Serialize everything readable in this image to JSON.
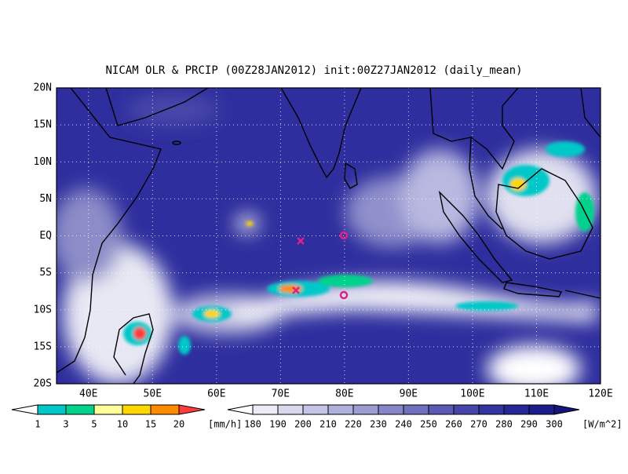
{
  "title": "NICAM OLR & PRCIP (00Z28JAN2012) init:00Z27JAN2012 (daily_mean)",
  "map": {
    "lat_labels": [
      "20N",
      "15N",
      "10N",
      "5N",
      "EQ",
      "5S",
      "10S",
      "15S",
      "20S"
    ],
    "lon_labels": [
      "40E",
      "50E",
      "60E",
      "70E",
      "80E",
      "90E",
      "100E",
      "110E",
      "120E"
    ]
  },
  "precip_scale": {
    "labels": [
      "1",
      "3",
      "5",
      "10",
      "15",
      "20"
    ],
    "unit": "[mm/h]",
    "colors": [
      "#ffffff",
      "#00c8c8",
      "#00d28c",
      "#ffff99",
      "#ffd700",
      "#ff8c00",
      "#ff3c3c"
    ]
  },
  "olr_scale": {
    "labels": [
      "180",
      "190",
      "200",
      "210",
      "220",
      "230",
      "240",
      "250",
      "260",
      "270",
      "280",
      "290",
      "300"
    ],
    "unit": "[W/m^2]",
    "colors": [
      "#ffffff",
      "#ececf6",
      "#d8d8ee",
      "#c4c4e6",
      "#b0b0dc",
      "#9c9cd2",
      "#8686c8",
      "#7070be",
      "#5a5ab4",
      "#4646aa",
      "#3434a0",
      "#262696",
      "#1c1c8a",
      "#14147a"
    ]
  }
}
